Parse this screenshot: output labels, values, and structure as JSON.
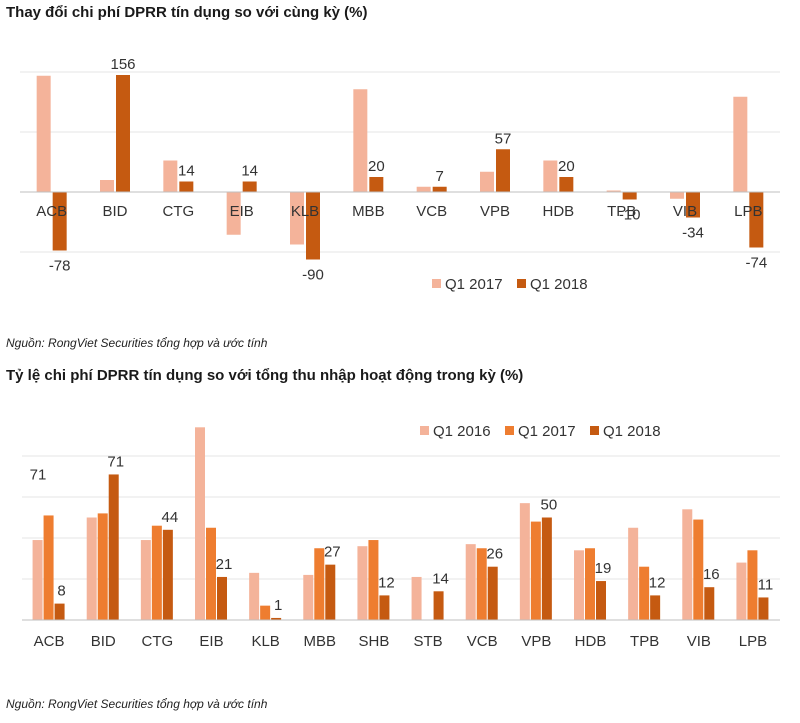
{
  "colors": {
    "light": "#f4b39a",
    "mid": "#ee7d30",
    "dark": "#c55a11",
    "axis": "#d9d9d9"
  },
  "chart_data": [
    {
      "type": "bar",
      "title": "Thay đổi chi phí DPRR tín dụng so với cùng kỳ (%)",
      "source": "Nguồn: RongViet Securities tổng hợp và ước tính",
      "categories": [
        "ACB",
        "BID",
        "CTG",
        "EIB",
        "KLB",
        "MBB",
        "VCB",
        "VPB",
        "HDB",
        "TPB",
        "VIB",
        "LPB"
      ],
      "series": [
        {
          "name": "Q1 2017",
          "color": "#f4b39a",
          "values": [
            155,
            16,
            42,
            -57,
            -70,
            137,
            7,
            27,
            42,
            2,
            -9,
            127
          ],
          "labels": [
            "",
            "",
            "",
            "",
            "",
            "",
            "",
            "",
            "",
            "",
            "",
            ""
          ]
        },
        {
          "name": "Q1 2018",
          "color": "#c55a11",
          "values": [
            -78,
            156,
            14,
            14,
            -90,
            20,
            7,
            57,
            20,
            -10,
            -34,
            -74
          ],
          "labels": [
            "-78",
            "156",
            "14",
            "14",
            "-90",
            "20",
            "7",
            "57",
            "20",
            "-10",
            "-34",
            "-74"
          ]
        }
      ],
      "ylim": [
        -100,
        180
      ],
      "legend": "bottom-right"
    },
    {
      "type": "bar",
      "title": "Tỷ lệ chi phí DPRR tín dụng so với tổng thu nhập hoạt động trong kỳ (%)",
      "source": "Nguồn: RongViet Securities tổng hợp và ước tính",
      "categories": [
        "ACB",
        "BID",
        "CTG",
        "EIB",
        "KLB",
        "MBB",
        "SHB",
        "STB",
        "VCB",
        "VPB",
        "HDB",
        "TPB",
        "VIB",
        "LPB"
      ],
      "series": [
        {
          "name": "Q1 2016",
          "color": "#f4b39a",
          "values": [
            39,
            50,
            39,
            94,
            23,
            22,
            36,
            21,
            37,
            57,
            34,
            45,
            54,
            28
          ],
          "labels": [
            "",
            "",
            "",
            "",
            "",
            "",
            "",
            "",
            "",
            "",
            "",
            "",
            "",
            ""
          ]
        },
        {
          "name": "Q1 2017",
          "color": "#ee7d30",
          "values": [
            51,
            52,
            46,
            45,
            7,
            35,
            39,
            0,
            35,
            48,
            35,
            26,
            49,
            34
          ],
          "labels": [
            "",
            "",
            "",
            "",
            "",
            "",
            "",
            "",
            "",
            "",
            "",
            "",
            "",
            ""
          ]
        },
        {
          "name": "Q1 2018",
          "color": "#c55a11",
          "values": [
            8,
            71,
            44,
            21,
            1,
            27,
            12,
            14,
            26,
            50,
            19,
            12,
            16,
            11
          ],
          "labels": [
            "8",
            "71",
            "44",
            "21",
            "1",
            "27",
            "12",
            "14",
            "26",
            "50",
            "19",
            "12",
            "16",
            "11"
          ]
        }
      ],
      "ytick_labels": [
        "71"
      ],
      "ylim": [
        0,
        100
      ],
      "legend": "top-right"
    }
  ]
}
